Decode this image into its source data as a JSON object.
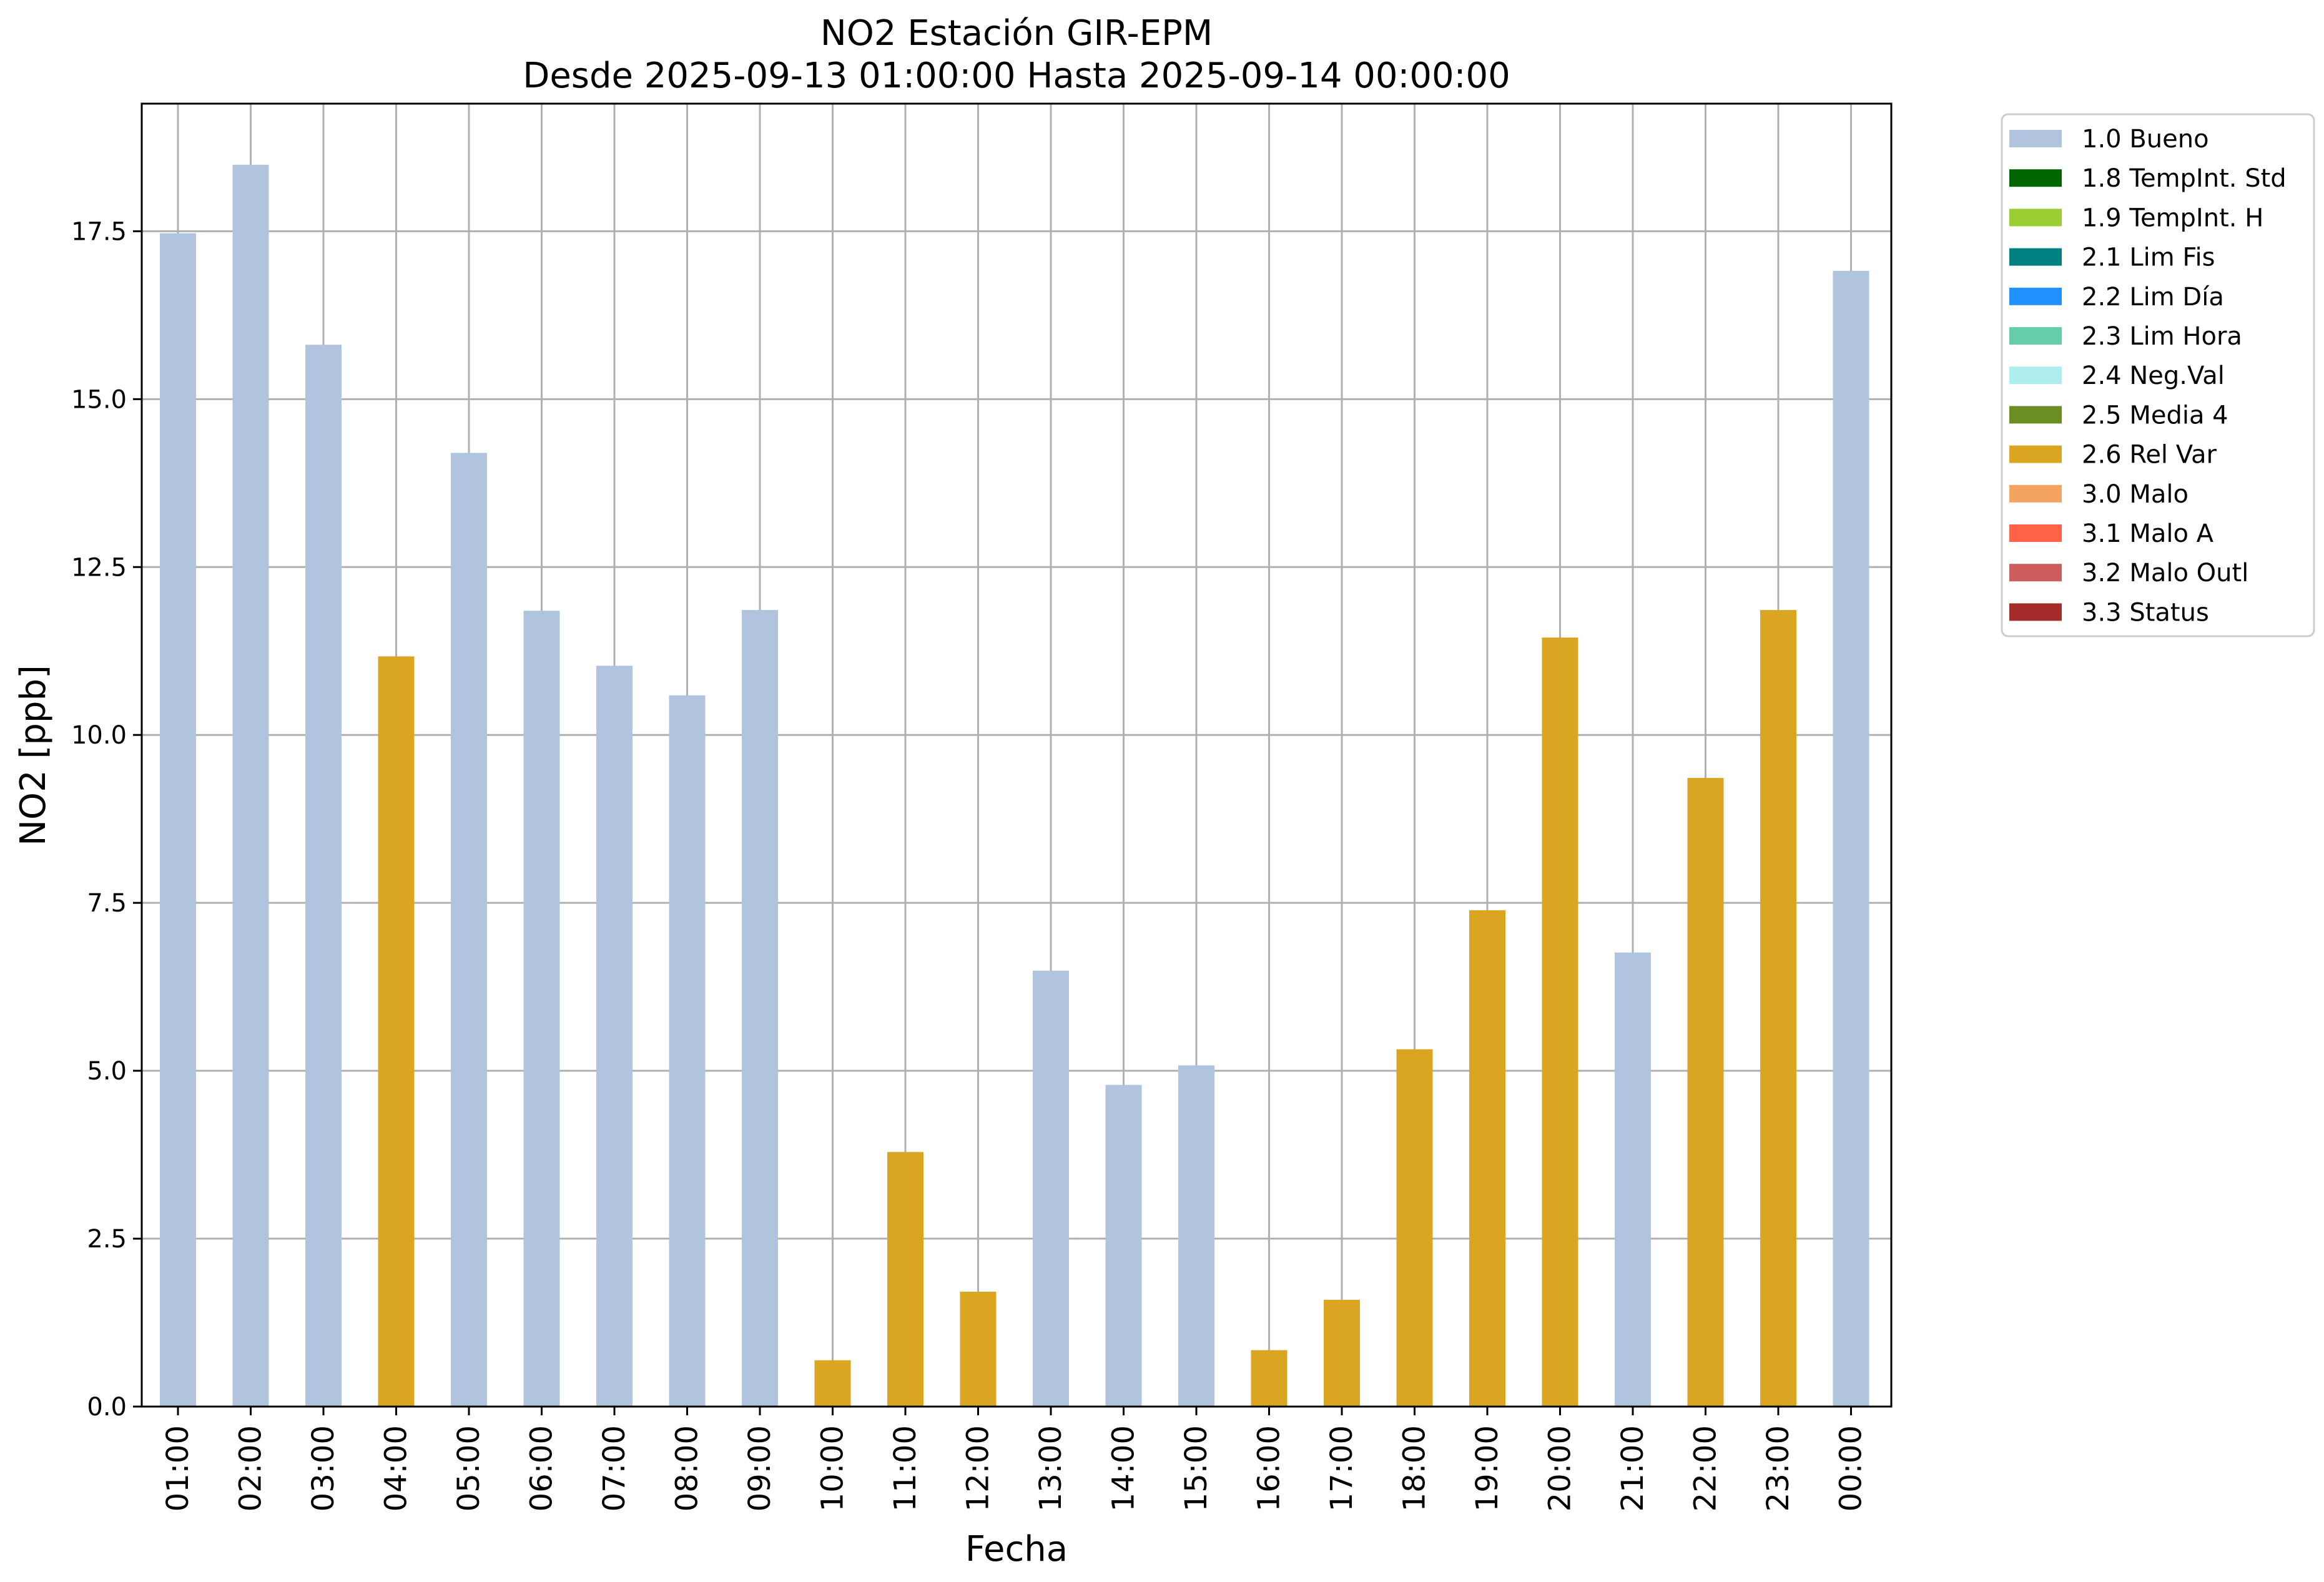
{
  "chart_data": {
    "type": "bar",
    "title": "NO2 Estación GIR-EPM",
    "subtitle": "Desde 2025-09-13 01:00:00 Hasta 2025-09-14 00:00:00",
    "xlabel": "Fecha",
    "ylabel": "NO2 [ppb]",
    "ylim": [
      0,
      19.4
    ],
    "yticks": [
      "0.0",
      "2.5",
      "5.0",
      "7.5",
      "10.0",
      "12.5",
      "15.0",
      "17.5"
    ],
    "grid": true,
    "legend_position": "outside top-right",
    "categories": [
      "01:00",
      "02:00",
      "03:00",
      "04:00",
      "05:00",
      "06:00",
      "07:00",
      "08:00",
      "09:00",
      "10:00",
      "11:00",
      "12:00",
      "13:00",
      "14:00",
      "15:00",
      "16:00",
      "17:00",
      "18:00",
      "19:00",
      "20:00",
      "21:00",
      "22:00",
      "23:00",
      "00:00"
    ],
    "values": [
      17.47,
      18.49,
      15.81,
      11.17,
      14.2,
      11.85,
      11.03,
      10.59,
      11.86,
      0.69,
      3.79,
      1.71,
      6.49,
      4.79,
      5.08,
      0.84,
      1.59,
      5.32,
      7.39,
      11.45,
      6.76,
      9.36,
      11.86,
      16.91
    ],
    "flags": [
      "1.0 Bueno",
      "1.0 Bueno",
      "1.0 Bueno",
      "2.6 Rel Var",
      "1.0 Bueno",
      "1.0 Bueno",
      "1.0 Bueno",
      "1.0 Bueno",
      "1.0 Bueno",
      "2.6 Rel Var",
      "2.6 Rel Var",
      "2.6 Rel Var",
      "1.0 Bueno",
      "1.0 Bueno",
      "1.0 Bueno",
      "2.6 Rel Var",
      "2.6 Rel Var",
      "2.6 Rel Var",
      "2.6 Rel Var",
      "2.6 Rel Var",
      "1.0 Bueno",
      "2.6 Rel Var",
      "2.6 Rel Var",
      "1.0 Bueno"
    ],
    "legend": [
      {
        "label": "1.0 Bueno",
        "color": "#b0c4de"
      },
      {
        "label": "1.8 TempInt. Std",
        "color": "#006400"
      },
      {
        "label": "1.9 TempInt. H",
        "color": "#9acd32"
      },
      {
        "label": "2.1 Lim Fis",
        "color": "#008080"
      },
      {
        "label": "2.2 Lim Día",
        "color": "#1e90ff"
      },
      {
        "label": "2.3 Lim Hora",
        "color": "#66cdaa"
      },
      {
        "label": "2.4 Neg.Val",
        "color": "#afeeee"
      },
      {
        "label": "2.5 Media 4",
        "color": "#6b8e23"
      },
      {
        "label": "2.6 Rel Var",
        "color": "#daa520"
      },
      {
        "label": "3.0 Malo",
        "color": "#f4a460"
      },
      {
        "label": "3.1 Malo A",
        "color": "#ff6347"
      },
      {
        "label": "3.2 Malo Outl",
        "color": "#cd5c5c"
      },
      {
        "label": "3.3 Status",
        "color": "#a52a2a"
      }
    ]
  }
}
